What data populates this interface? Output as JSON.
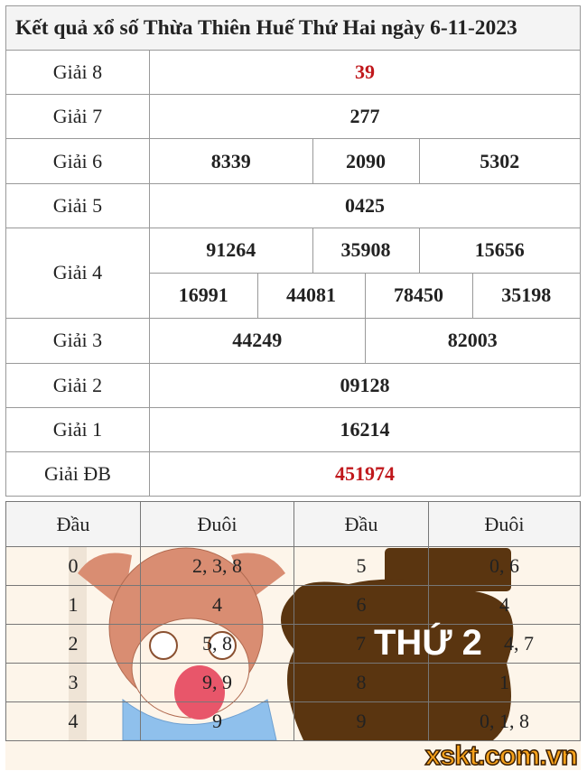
{
  "title": "Kết quả xổ số Thừa Thiên Huế Thứ Hai ngày 6-11-2023",
  "prizes": {
    "g8": {
      "label": "Giải 8",
      "value": "39"
    },
    "g7": {
      "label": "Giải 7",
      "value": "277"
    },
    "g6": {
      "label": "Giải 6",
      "values": [
        "8339",
        "2090",
        "5302"
      ]
    },
    "g5": {
      "label": "Giải 5",
      "value": "0425"
    },
    "g4": {
      "label": "Giải 4",
      "values": [
        "91264",
        "35908",
        "15656",
        "16991",
        "44081",
        "78450",
        "35198"
      ]
    },
    "g3": {
      "label": "Giải 3",
      "values": [
        "44249",
        "82003"
      ]
    },
    "g2": {
      "label": "Giải 2",
      "value": "09128"
    },
    "g1": {
      "label": "Giải 1",
      "value": "16214"
    },
    "db": {
      "label": "Giải ĐB",
      "value": "451974"
    }
  },
  "loto": {
    "headers": [
      "Đầu",
      "Đuôi",
      "Đầu",
      "Đuôi"
    ],
    "rows": [
      [
        "0",
        "2, 3, 8",
        "5",
        "0, 6"
      ],
      [
        "1",
        "4",
        "6",
        "4"
      ],
      [
        "2",
        "5, 8",
        "7",
        "4, 7"
      ],
      [
        "3",
        "9, 9",
        "8",
        "1"
      ],
      [
        "4",
        "9",
        "9",
        "0, 1, 8"
      ]
    ]
  },
  "banner": {
    "text": "THỨ 2",
    "logo": "xskt.com.vn"
  },
  "colors": {
    "special": "#c0181c",
    "blob": "#5a3510",
    "logo": "#f7a21b"
  }
}
